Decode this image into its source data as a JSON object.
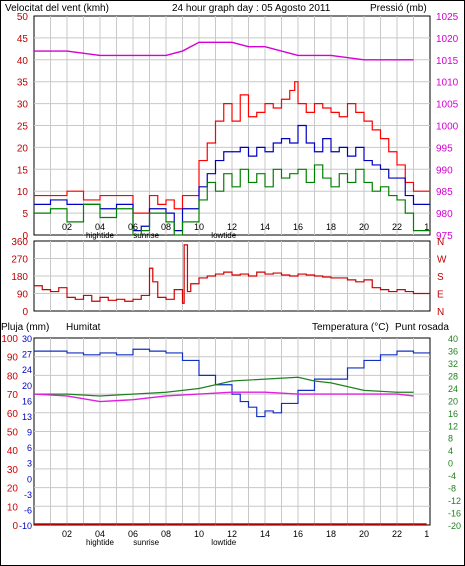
{
  "header": {
    "wind_label": "Velocitat del vent (kmh)",
    "title": "24 hour graph day : 05 Agosto 2011",
    "pressure_label": "Pressió (mb)"
  },
  "bottom_header": {
    "rain_label": "Pluja (mm)",
    "humidity_label": "Humitat",
    "temp_label": "Temperatura (°C)",
    "dew_label": "Punt rosada"
  },
  "colors": {
    "wind_gust": "#ff0000",
    "wind_avg": "#0000c0",
    "wind_low": "#008000",
    "pressure": "#d400d4",
    "direction": "#d00000",
    "humidity": "#1030c0",
    "temperature": "#208020",
    "dew_point": "#e020e0",
    "rain": "#e00000",
    "grid": "#c8c8c8"
  },
  "time_axis": {
    "ticks": [
      "02",
      "04",
      "06",
      "08",
      "10",
      "12",
      "14",
      "16",
      "18",
      "20",
      "22",
      "1"
    ],
    "events": [
      {
        "label": "hightide",
        "hour": 4
      },
      {
        "label": "sunrise",
        "hour": 6.8
      },
      {
        "label": "lowtide",
        "hour": 11.5
      }
    ]
  },
  "chart_data": [
    {
      "type": "line",
      "name": "wind",
      "xlim": [
        0,
        24
      ],
      "ylim": [
        0,
        50
      ],
      "y_ticks": [
        "0",
        "5",
        "10",
        "15",
        "20",
        "25",
        "30",
        "35",
        "40",
        "45",
        "50"
      ],
      "y2lim": [
        975,
        1025
      ],
      "y2_ticks": [
        "975",
        "980",
        "985",
        "990",
        "995",
        "1000",
        "1005",
        "1010",
        "1015",
        "1020",
        "1025"
      ],
      "series": [
        {
          "key": "gust",
          "x": [
            0,
            1,
            2,
            3,
            4,
            5,
            6,
            7,
            7.5,
            8,
            8.5,
            9,
            10,
            10.5,
            11,
            11.5,
            12,
            12.5,
            13,
            13.5,
            14,
            14.5,
            15,
            15.5,
            15.8,
            16,
            16.5,
            17,
            17.5,
            18,
            18.5,
            19,
            19.5,
            20,
            20.5,
            21,
            21.5,
            22,
            22.5,
            23
          ],
          "y": [
            9,
            9,
            10,
            8,
            9,
            9,
            5,
            9,
            7,
            8,
            6,
            9,
            17,
            21,
            26,
            30,
            26,
            32,
            27,
            28,
            30,
            29,
            31,
            33,
            35,
            30,
            28,
            30,
            29,
            28,
            27,
            30,
            28,
            26,
            24,
            22,
            19,
            16,
            12,
            10
          ]
        },
        {
          "key": "average",
          "x": [
            0,
            1,
            2,
            3,
            4,
            5,
            6,
            6.5,
            7,
            8,
            8.5,
            9,
            10,
            10.5,
            11,
            11.5,
            12,
            12.5,
            13,
            13.5,
            14,
            14.5,
            15,
            15.5,
            16,
            16.5,
            17,
            17.5,
            18,
            18.5,
            19,
            19.5,
            20,
            20.5,
            21,
            21.5,
            22,
            22.5,
            23
          ],
          "y": [
            7,
            8,
            7,
            7,
            6,
            7,
            1,
            2,
            6,
            5,
            1,
            6,
            11,
            14,
            17,
            19,
            19,
            20,
            18,
            20,
            19,
            21,
            22,
            21,
            25,
            21,
            19,
            22,
            19,
            20,
            18,
            20,
            17,
            16,
            15,
            13,
            13,
            9,
            7
          ]
        },
        {
          "key": "low",
          "x": [
            0,
            1,
            2,
            3,
            4,
            5,
            6,
            6.5,
            7,
            8,
            8.5,
            9,
            10,
            10.5,
            11,
            11.5,
            12,
            12.5,
            13,
            13.5,
            14,
            14.5,
            15,
            15.5,
            16,
            16.5,
            17,
            17.5,
            18,
            18.5,
            19,
            19.5,
            20,
            20.5,
            21,
            21.5,
            22,
            22.5,
            23
          ],
          "y": [
            5,
            6,
            3,
            7,
            4,
            6,
            0,
            1,
            5,
            3,
            0,
            3,
            8,
            12,
            10,
            14,
            11,
            15,
            12,
            14,
            11,
            15,
            13,
            14,
            15,
            12,
            16,
            13,
            11,
            14,
            12,
            15,
            12,
            10,
            11,
            9,
            8,
            5,
            1
          ]
        },
        {
          "key": "pressure",
          "axis": "right",
          "x": [
            0,
            2,
            4,
            6,
            8,
            9,
            10,
            11,
            12,
            13,
            14,
            16,
            18,
            20,
            22,
            23
          ],
          "y": [
            1017,
            1017,
            1016,
            1016,
            1016,
            1017,
            1019,
            1019,
            1019,
            1018,
            1018,
            1016,
            1016,
            1015,
            1015,
            1015
          ]
        }
      ]
    },
    {
      "type": "line",
      "name": "wind_direction",
      "xlim": [
        0,
        24
      ],
      "ylim": [
        0,
        360
      ],
      "y_ticks": [
        "0",
        "90",
        "180",
        "270",
        "360"
      ],
      "compass": [
        "N",
        "W",
        "S",
        "E",
        "N"
      ],
      "series": [
        {
          "key": "direction",
          "x": [
            0,
            0.5,
            1,
            1.5,
            2,
            2.5,
            3,
            3.5,
            4,
            4.5,
            5,
            5.5,
            6,
            6.5,
            7,
            7.2,
            7.5,
            8,
            8.5,
            9,
            9.1,
            9.3,
            9.5,
            10,
            10.5,
            11,
            11.5,
            12,
            12.5,
            13,
            13.5,
            14,
            14.5,
            15,
            15.5,
            16,
            16.5,
            17,
            17.5,
            18,
            18.5,
            19,
            19.5,
            20,
            20.5,
            21,
            21.5,
            22,
            22.5,
            23
          ],
          "y": [
            130,
            110,
            100,
            120,
            70,
            60,
            80,
            50,
            70,
            55,
            60,
            50,
            60,
            80,
            220,
            150,
            70,
            60,
            110,
            40,
            340,
            100,
            140,
            170,
            180,
            190,
            200,
            185,
            190,
            180,
            200,
            190,
            195,
            185,
            180,
            190,
            185,
            180,
            175,
            170,
            170,
            160,
            150,
            160,
            120,
            110,
            100,
            110,
            100,
            90
          ]
        }
      ]
    },
    {
      "type": "line",
      "name": "humidity_temperature",
      "xlim": [
        0,
        24
      ],
      "ylim": [
        0,
        100
      ],
      "y_ticks": [
        "0",
        "10",
        "20",
        "30",
        "40",
        "50",
        "60",
        "70",
        "80",
        "90",
        "100"
      ],
      "y2_left_ticks": [
        "-10",
        "-6",
        "-3",
        "0",
        "3",
        "6",
        "9",
        "13",
        "16",
        "20",
        "24",
        "27",
        "30"
      ],
      "y_right_ticks": [
        "-20",
        "-16",
        "-12",
        "-8",
        "-4",
        "0",
        "4",
        "8",
        "12",
        "16",
        "20",
        "24",
        "28",
        "32",
        "36",
        "40"
      ],
      "series": [
        {
          "key": "humidity",
          "x": [
            0,
            1,
            2,
            3,
            4,
            5,
            6,
            7,
            8,
            9,
            10,
            11,
            12,
            12.5,
            13,
            13.5,
            14,
            14.5,
            15,
            16,
            17,
            18,
            19,
            20,
            21,
            22,
            23
          ],
          "y": [
            93,
            93,
            92,
            91,
            92,
            91,
            94,
            93,
            92,
            88,
            80,
            75,
            70,
            66,
            63,
            58,
            61,
            60,
            65,
            72,
            78,
            78,
            84,
            88,
            91,
            93,
            92
          ]
        },
        {
          "key": "temperature",
          "x": [
            0,
            2,
            4,
            6,
            8,
            10,
            12,
            14,
            16,
            17,
            18,
            20,
            22,
            23
          ],
          "y": [
            70,
            70,
            69,
            70,
            71,
            73,
            77,
            78,
            79,
            77,
            76,
            72,
            71,
            71
          ]
        },
        {
          "key": "dew_point",
          "x": [
            0,
            2,
            4,
            6,
            8,
            10,
            12,
            14,
            16,
            18,
            20,
            22,
            23
          ],
          "y": [
            70,
            69,
            66,
            67,
            69,
            70,
            71,
            71,
            70,
            70,
            70,
            70,
            69
          ]
        },
        {
          "key": "rain",
          "x": [
            0,
            23.8
          ],
          "y": [
            0,
            0
          ]
        }
      ]
    }
  ]
}
